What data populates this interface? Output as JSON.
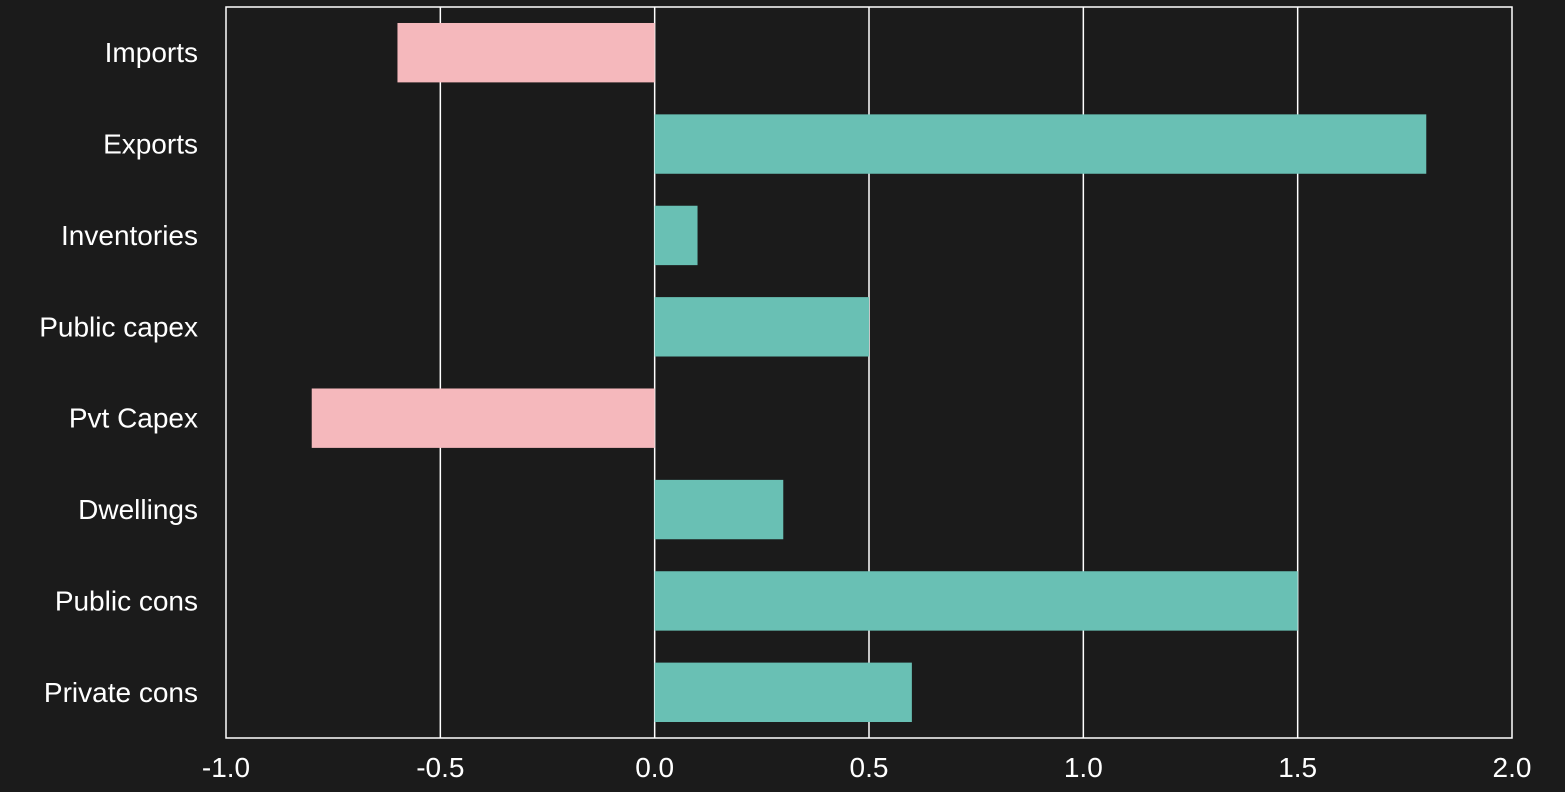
{
  "chart_data": {
    "type": "bar",
    "orientation": "horizontal",
    "categories": [
      "Imports",
      "Exports",
      "Inventories",
      "Public capex",
      "Pvt Capex",
      "Dwellings",
      "Public cons",
      "Private cons"
    ],
    "values": [
      -0.6,
      1.8,
      0.1,
      0.5,
      -0.8,
      0.3,
      1.5,
      0.6
    ],
    "xlim": [
      -1.0,
      2.0
    ],
    "xticks": [
      -1.0,
      -0.5,
      0.0,
      0.5,
      1.0,
      1.5,
      2.0
    ],
    "xtick_labels": [
      "-1.0",
      "-0.5",
      "0.0",
      "0.5",
      "1.0",
      "1.5",
      "2.0"
    ],
    "grid": "vertical",
    "legend": "none"
  },
  "colors": {
    "background": "#1b1b1b",
    "positive": "#69c0b4",
    "negative": "#f5b8bc",
    "frame": "#ffffff",
    "grid": "#ffffff",
    "text": "#ffffff"
  }
}
